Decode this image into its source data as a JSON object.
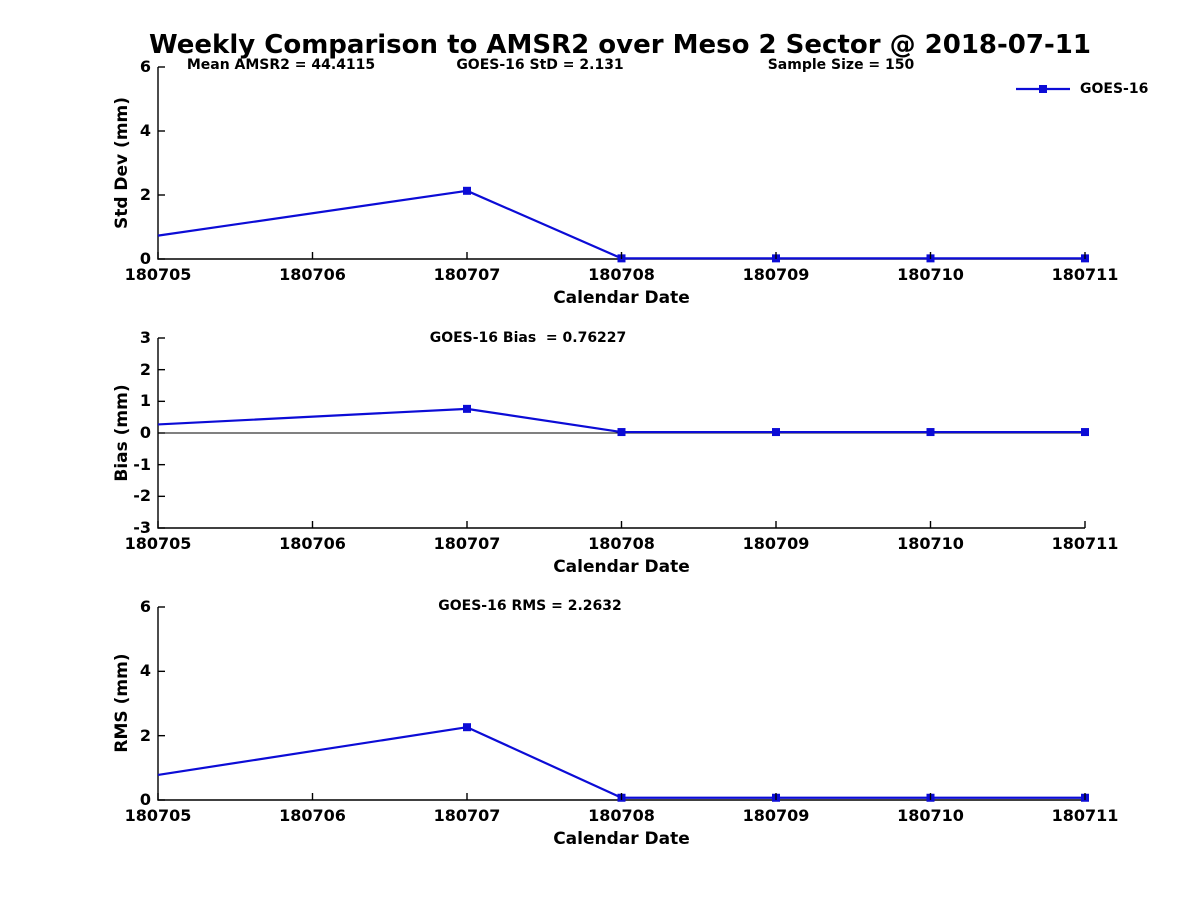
{
  "title": "Weekly Comparison to AMSR2 over Meso 2 Sector @ 2018-07-11",
  "legend": {
    "label": "GOES-16",
    "color": "#0c0cd6"
  },
  "colors": {
    "series": "#0c0cd6",
    "axis": "#000000",
    "background": "#ffffff"
  },
  "chart_data": [
    {
      "type": "line",
      "panel": "std-dev",
      "ylabel": "Std Dev (mm)",
      "xlabel": "Calendar Date",
      "ylim": [
        0,
        6
      ],
      "yticks": [
        0,
        2,
        4,
        6
      ],
      "grid": false,
      "legend_position": "top-right-outside",
      "categories": [
        "180705",
        "180706",
        "180707",
        "180708",
        "180709",
        "180710",
        "180711"
      ],
      "annotations": [
        "Mean AMSR2 = 44.4115",
        "GOES-16 StD = 2.131",
        "Sample Size = 150"
      ],
      "series": [
        {
          "name": "GOES-16",
          "color": "#0c0cd6",
          "marker": "square",
          "x": [
            "180705",
            "180707",
            "180708",
            "180709",
            "180710",
            "180711"
          ],
          "values": [
            0.73,
            2.131,
            0.02,
            0.02,
            0.02,
            0.02
          ]
        }
      ]
    },
    {
      "type": "line",
      "panel": "bias",
      "ylabel": "Bias (mm)",
      "xlabel": "Calendar Date",
      "ylim": [
        -3,
        3
      ],
      "yticks": [
        -3,
        -2,
        -1,
        0,
        1,
        2,
        3
      ],
      "zero_line": true,
      "grid": false,
      "categories": [
        "180705",
        "180706",
        "180707",
        "180708",
        "180709",
        "180710",
        "180711"
      ],
      "annotations": [
        "GOES-16 Bias  = 0.76227"
      ],
      "series": [
        {
          "name": "GOES-16",
          "color": "#0c0cd6",
          "marker": "square",
          "x": [
            "180705",
            "180707",
            "180708",
            "180709",
            "180710",
            "180711"
          ],
          "values": [
            0.27,
            0.76227,
            0.03,
            0.03,
            0.03,
            0.03
          ]
        }
      ]
    },
    {
      "type": "line",
      "panel": "rms",
      "ylabel": "RMS (mm)",
      "xlabel": "Calendar Date",
      "ylim": [
        0,
        6
      ],
      "yticks": [
        0,
        2,
        4,
        6
      ],
      "grid": false,
      "categories": [
        "180705",
        "180706",
        "180707",
        "180708",
        "180709",
        "180710",
        "180711"
      ],
      "annotations": [
        "GOES-16 RMS = 2.2632"
      ],
      "series": [
        {
          "name": "GOES-16",
          "color": "#0c0cd6",
          "marker": "square",
          "x": [
            "180705",
            "180707",
            "180708",
            "180709",
            "180710",
            "180711"
          ],
          "values": [
            0.78,
            2.2632,
            0.07,
            0.07,
            0.07,
            0.07
          ]
        }
      ]
    }
  ]
}
